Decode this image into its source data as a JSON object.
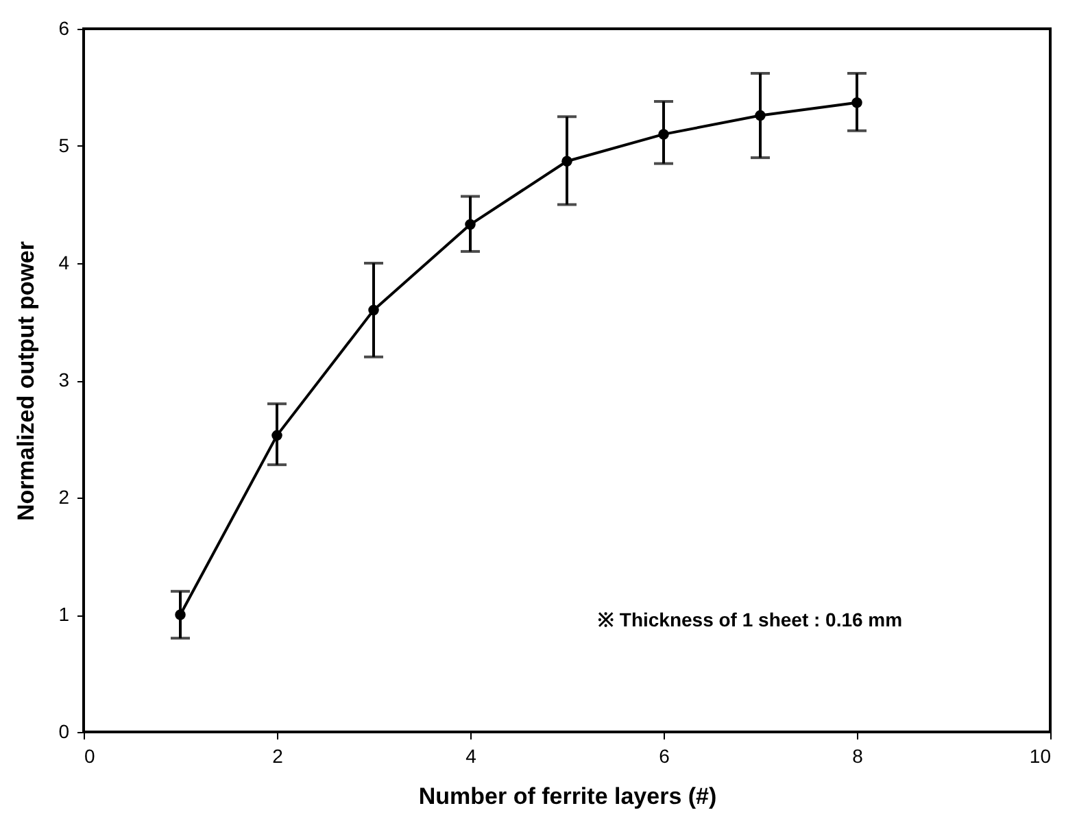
{
  "chart_data": {
    "type": "line",
    "xlabel": "Number of ferrite layers (#)",
    "ylabel": "Normalized output power",
    "x": [
      1,
      2,
      3,
      4,
      5,
      6,
      7,
      8
    ],
    "series": [
      {
        "color": "#000000",
        "values": [
          1.0,
          2.53,
          3.6,
          4.33,
          4.87,
          5.1,
          5.26,
          5.37
        ],
        "errors": [
          [
            0.8,
            1.2
          ],
          [
            2.28,
            2.8
          ],
          [
            3.2,
            4.0
          ],
          [
            4.1,
            4.57
          ],
          [
            4.5,
            5.25
          ],
          [
            4.85,
            5.38
          ],
          [
            4.9,
            5.62
          ],
          [
            5.13,
            5.62
          ]
        ]
      }
    ],
    "xlim": [
      0,
      10
    ],
    "xticks": [
      0,
      2,
      4,
      6,
      8,
      10
    ],
    "ylim": [
      0,
      6
    ],
    "yticks": [
      0,
      1,
      2,
      3,
      4,
      5,
      6
    ],
    "grid": false,
    "marker": "circle",
    "line_style": "solid",
    "annotations": [
      "※ Thickness of 1 sheet : 0.16 mm"
    ]
  }
}
